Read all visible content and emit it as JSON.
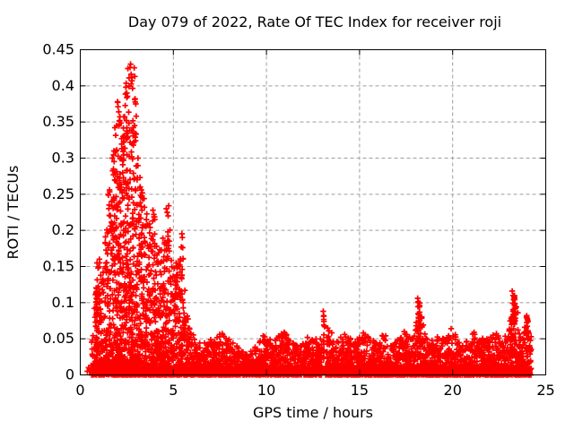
{
  "chart_data": {
    "type": "scatter",
    "title": "Day 079 of 2022, Rate Of TEC Index for receiver roji",
    "xlabel": "GPS time / hours",
    "ylabel": "ROTI / TECUs",
    "xlim": [
      0,
      25
    ],
    "ylim": [
      0,
      0.45
    ],
    "xticks": [
      0,
      5,
      10,
      15,
      20,
      25
    ],
    "xtick_labels": [
      "0",
      "5",
      "10",
      "15",
      "20",
      "25"
    ],
    "yticks": [
      0,
      0.05,
      0.1,
      0.15,
      0.2,
      0.25,
      0.3,
      0.35,
      0.4,
      0.45
    ],
    "ytick_labels": [
      "0",
      "0.05",
      "0.1",
      "0.15",
      "0.2",
      "0.25",
      "0.3",
      "0.35",
      "0.4",
      "0.45"
    ],
    "background": "#ffffff",
    "axis_color": "#000000",
    "grid": {
      "show": true,
      "color": "#9e9e9e",
      "dash": [
        4,
        3
      ]
    },
    "legend": null,
    "marker": {
      "shape": "plus",
      "color": "#ff0000",
      "size": 7,
      "stroke_width": 1.7
    },
    "description": "Dense ROTI scatter vs GPS time: quiet baseline 0-0.05 TECU from ~0.6h to ~24.2h; strong activity burst 0.85h-5.6h peaking at 0.43 near 2.8h; spikes near 13.1h (0.088), 18.2h (0.105), 23.3h (0.116).",
    "synthesis": {
      "seed": 79,
      "t_start": 0.62,
      "t_end": 24.22,
      "dt": 0.03,
      "base_pts": 4,
      "density_scale": 26,
      "power": 2.2,
      "envelope": [
        [
          0.6,
          0.05
        ],
        [
          0.75,
          0.08
        ],
        [
          0.85,
          0.14
        ],
        [
          1.0,
          0.16
        ],
        [
          1.2,
          0.14
        ],
        [
          1.4,
          0.22
        ],
        [
          1.6,
          0.27
        ],
        [
          1.8,
          0.32
        ],
        [
          2.0,
          0.385
        ],
        [
          2.2,
          0.36
        ],
        [
          2.4,
          0.405
        ],
        [
          2.6,
          0.425
        ],
        [
          2.8,
          0.435
        ],
        [
          3.0,
          0.37
        ],
        [
          3.2,
          0.3
        ],
        [
          3.4,
          0.25
        ],
        [
          3.6,
          0.22
        ],
        [
          3.8,
          0.2
        ],
        [
          3.95,
          0.235
        ],
        [
          4.1,
          0.19
        ],
        [
          4.3,
          0.17
        ],
        [
          4.5,
          0.2
        ],
        [
          4.65,
          0.235
        ],
        [
          4.85,
          0.2
        ],
        [
          5.0,
          0.14
        ],
        [
          5.2,
          0.165
        ],
        [
          5.45,
          0.2
        ],
        [
          5.65,
          0.1
        ],
        [
          5.9,
          0.062
        ],
        [
          6.2,
          0.05
        ],
        [
          6.6,
          0.046
        ],
        [
          7.0,
          0.05
        ],
        [
          7.6,
          0.058
        ],
        [
          8.1,
          0.052
        ],
        [
          8.6,
          0.034
        ],
        [
          9.0,
          0.028
        ],
        [
          9.4,
          0.04
        ],
        [
          9.8,
          0.055
        ],
        [
          10.3,
          0.048
        ],
        [
          10.9,
          0.06
        ],
        [
          11.4,
          0.05
        ],
        [
          11.8,
          0.042
        ],
        [
          12.2,
          0.05
        ],
        [
          12.6,
          0.048
        ],
        [
          12.9,
          0.055
        ],
        [
          13.3,
          0.068
        ],
        [
          13.7,
          0.048
        ],
        [
          14.2,
          0.055
        ],
        [
          14.7,
          0.048
        ],
        [
          15.2,
          0.058
        ],
        [
          15.7,
          0.05
        ],
        [
          16.2,
          0.055
        ],
        [
          16.6,
          0.045
        ],
        [
          17.0,
          0.052
        ],
        [
          17.4,
          0.06
        ],
        [
          17.8,
          0.05
        ],
        [
          18.0,
          0.075
        ],
        [
          18.25,
          0.09
        ],
        [
          18.5,
          0.06
        ],
        [
          18.8,
          0.048
        ],
        [
          19.2,
          0.055
        ],
        [
          19.6,
          0.05
        ],
        [
          19.95,
          0.062
        ],
        [
          20.3,
          0.052
        ],
        [
          20.7,
          0.048
        ],
        [
          21.1,
          0.058
        ],
        [
          21.5,
          0.05
        ],
        [
          21.9,
          0.052
        ],
        [
          22.3,
          0.058
        ],
        [
          22.7,
          0.05
        ],
        [
          23.0,
          0.07
        ],
        [
          23.25,
          0.1
        ],
        [
          23.45,
          0.08
        ],
        [
          23.65,
          0.055
        ],
        [
          23.9,
          0.07
        ],
        [
          24.1,
          0.06
        ],
        [
          24.2,
          0.055
        ]
      ],
      "gaps": [
        [
          12.98,
          13.17
        ]
      ],
      "spikes": [
        {
          "t": 0.88,
          "h": 0.125,
          "n": 28,
          "w": 0.035
        },
        {
          "t": 13.08,
          "h": 0.085,
          "n": 13,
          "w": 0.012
        },
        {
          "t": 18.2,
          "h": 0.102,
          "n": 24,
          "w": 0.09
        },
        {
          "t": 23.3,
          "h": 0.112,
          "n": 34,
          "w": 0.1
        },
        {
          "t": 24.0,
          "h": 0.08,
          "n": 10,
          "w": 0.05
        }
      ],
      "outliers": [
        [
          0.38,
          0.005
        ],
        [
          0.45,
          0.01
        ],
        [
          0.52,
          0.006
        ],
        [
          0.58,
          0.013
        ],
        [
          0.9,
          0.155
        ],
        [
          0.97,
          0.148
        ],
        [
          1.03,
          0.16
        ],
        [
          1.15,
          0.128
        ],
        [
          1.5,
          0.25
        ],
        [
          1.55,
          0.235
        ],
        [
          1.62,
          0.22
        ],
        [
          1.72,
          0.3
        ],
        [
          1.78,
          0.285
        ],
        [
          1.95,
          0.345
        ],
        [
          2.0,
          0.378
        ],
        [
          2.03,
          0.371
        ],
        [
          2.07,
          0.364
        ],
        [
          2.12,
          0.352
        ],
        [
          2.2,
          0.26
        ],
        [
          2.3,
          0.33
        ],
        [
          2.33,
          0.322
        ],
        [
          2.38,
          0.357
        ],
        [
          2.35,
          0.245
        ],
        [
          2.45,
          0.398
        ],
        [
          2.5,
          0.39
        ],
        [
          2.56,
          0.424
        ],
        [
          2.62,
          0.411
        ],
        [
          2.7,
          0.43
        ],
        [
          2.73,
          0.416
        ],
        [
          2.78,
          0.407
        ],
        [
          2.9,
          0.425
        ],
        [
          2.93,
          0.413
        ],
        [
          2.95,
          0.382
        ],
        [
          2.98,
          0.375
        ],
        [
          2.55,
          0.335
        ],
        [
          2.68,
          0.322
        ],
        [
          2.85,
          0.318
        ],
        [
          2.97,
          0.324
        ],
        [
          3.05,
          0.27
        ],
        [
          3.1,
          0.3
        ],
        [
          3.3,
          0.246
        ],
        [
          3.33,
          0.252
        ],
        [
          3.45,
          0.232
        ],
        [
          3.55,
          0.215
        ],
        [
          3.6,
          0.208
        ],
        [
          3.9,
          0.228
        ],
        [
          3.95,
          0.222
        ],
        [
          4.0,
          0.215
        ],
        [
          4.62,
          0.23
        ],
        [
          4.67,
          0.225
        ],
        [
          4.72,
          0.22
        ],
        [
          4.75,
          0.234
        ],
        [
          4.7,
          0.198
        ],
        [
          4.71,
          0.186
        ],
        [
          4.73,
          0.175
        ],
        [
          4.68,
          0.164
        ],
        [
          4.1,
          0.178
        ],
        [
          4.12,
          0.166
        ],
        [
          5.15,
          0.155
        ],
        [
          5.2,
          0.148
        ],
        [
          5.48,
          0.19
        ],
        [
          5.5,
          0.176
        ],
        [
          5.52,
          0.161
        ],
        [
          5.47,
          0.146
        ],
        [
          5.45,
          0.133
        ],
        [
          7.62,
          0.057
        ],
        [
          9.82,
          0.054
        ],
        [
          10.95,
          0.059
        ],
        [
          12.2,
          0.052
        ],
        [
          13.05,
          0.088
        ],
        [
          13.07,
          0.081
        ],
        [
          13.09,
          0.074
        ],
        [
          13.12,
          0.067
        ],
        [
          14.2,
          0.056
        ],
        [
          15.2,
          0.058
        ],
        [
          16.4,
          0.054
        ],
        [
          17.4,
          0.06
        ],
        [
          18.12,
          0.106
        ],
        [
          18.17,
          0.1
        ],
        [
          18.22,
          0.094
        ],
        [
          19.92,
          0.064
        ],
        [
          21.15,
          0.059
        ],
        [
          22.35,
          0.057
        ],
        [
          23.2,
          0.116
        ],
        [
          23.24,
          0.11
        ],
        [
          23.28,
          0.104
        ],
        [
          23.42,
          0.094
        ],
        [
          23.5,
          0.086
        ],
        [
          23.98,
          0.082
        ],
        [
          24.05,
          0.074
        ]
      ]
    }
  }
}
